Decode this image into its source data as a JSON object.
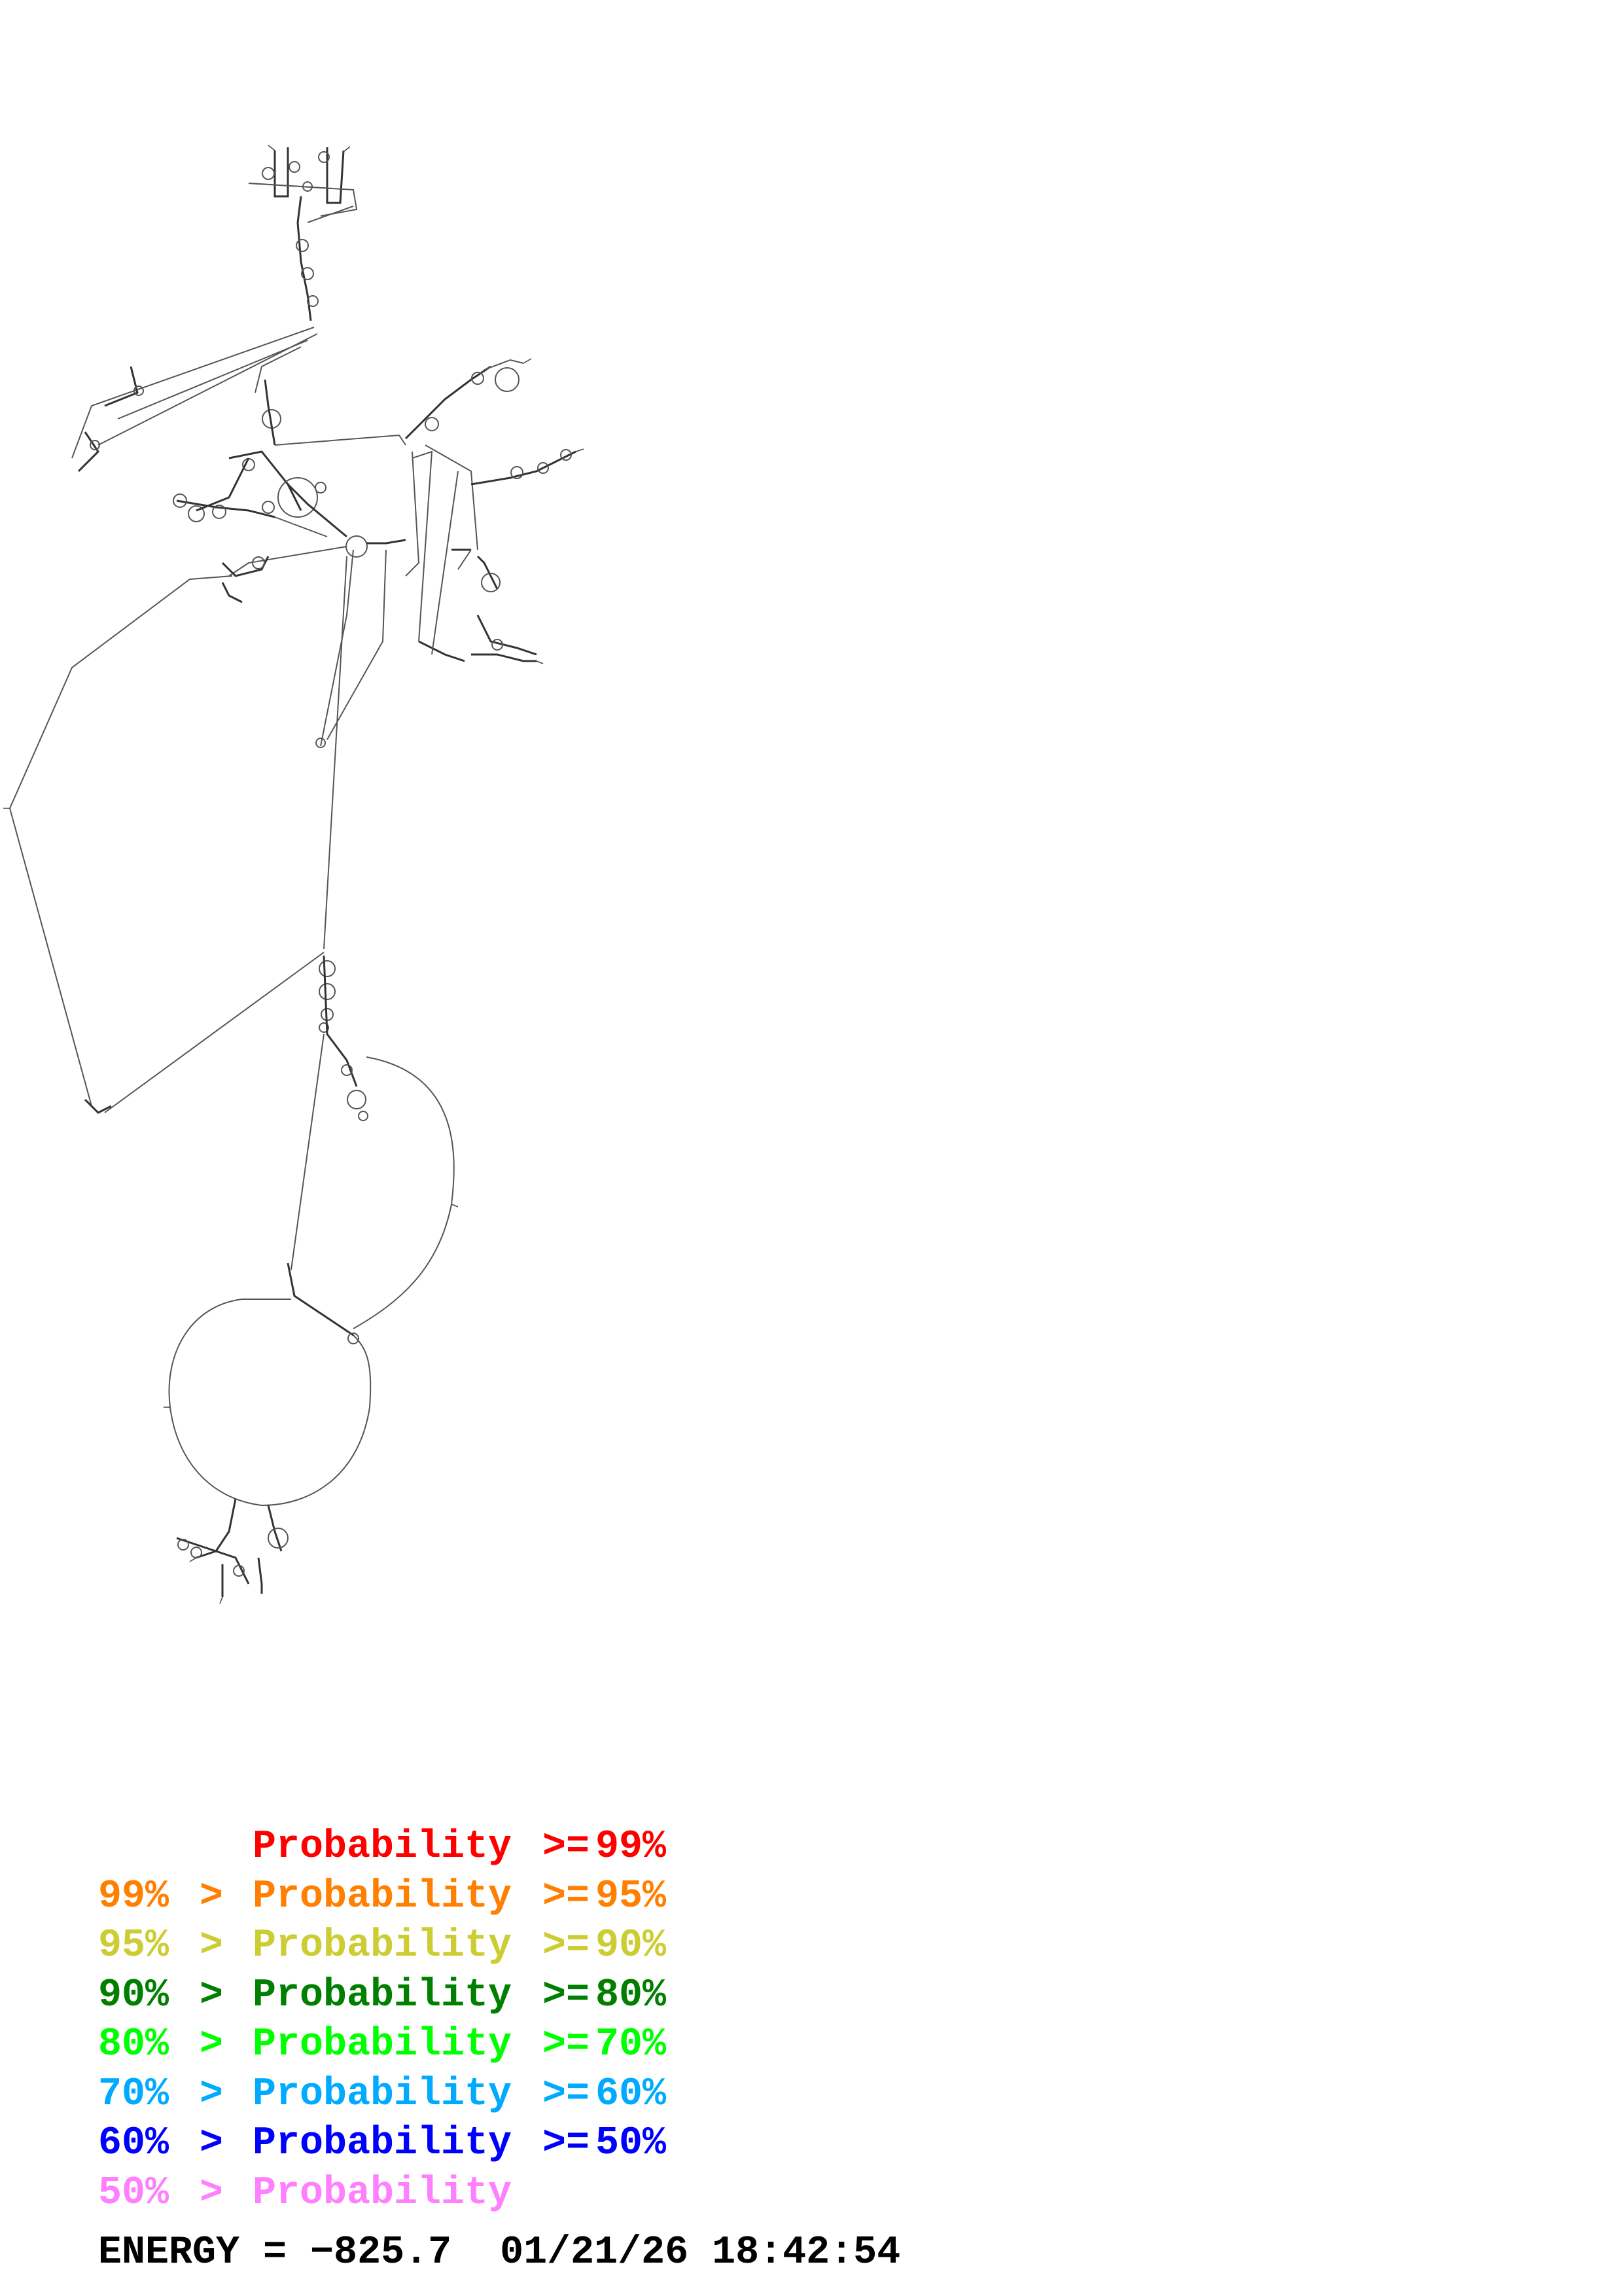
{
  "structure": {
    "line_color": "#555555"
  },
  "legend": [
    {
      "lower": "",
      "op1": "",
      "word": "Probability",
      "op2": ">=",
      "upper": "99%",
      "color": "#ff0000"
    },
    {
      "lower": "99%",
      "op1": ">",
      "word": "Probability",
      "op2": ">=",
      "upper": "95%",
      "color": "#ff7f00"
    },
    {
      "lower": "95%",
      "op1": ">",
      "word": "Probability",
      "op2": ">=",
      "upper": "90%",
      "color": "#cccc33"
    },
    {
      "lower": "90%",
      "op1": ">",
      "word": "Probability",
      "op2": ">=",
      "upper": "80%",
      "color": "#007f00"
    },
    {
      "lower": "80%",
      "op1": ">",
      "word": "Probability",
      "op2": ">=",
      "upper": "70%",
      "color": "#00ff00"
    },
    {
      "lower": "70%",
      "op1": ">",
      "word": "Probability",
      "op2": ">=",
      "upper": "60%",
      "color": "#00aaff"
    },
    {
      "lower": "60%",
      "op1": ">",
      "word": "Probability",
      "op2": ">=",
      "upper": "50%",
      "color": "#0000ff"
    },
    {
      "lower": "50%",
      "op1": ">",
      "word": "Probability",
      "op2": "",
      "upper": "",
      "color": "#ff80ff"
    }
  ],
  "footer": {
    "energy_label": "ENERGY = −825.7",
    "timestamp": "01/21/26 18:42:54"
  }
}
